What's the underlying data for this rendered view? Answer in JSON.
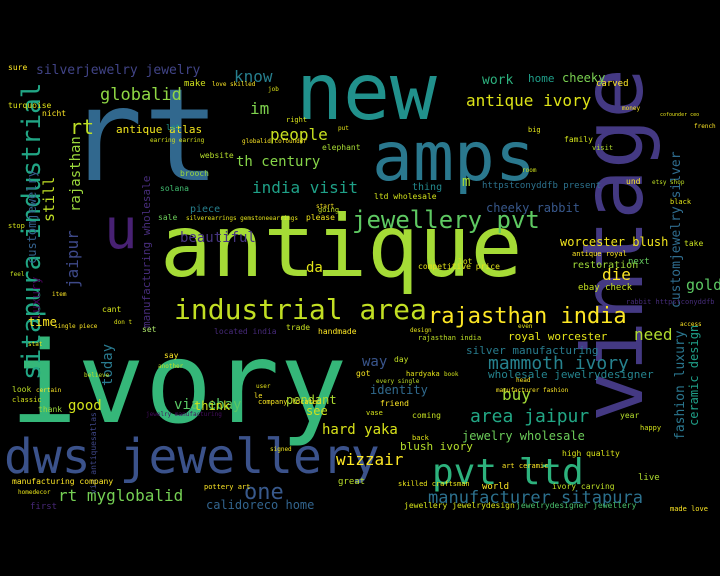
{
  "cloud": {
    "background": "#000000",
    "words": [
      {
        "text": "ivory",
        "color": "#35b779"
      },
      {
        "text": "rt",
        "color": "#31688e"
      },
      {
        "text": "antique",
        "color": "#a5db36"
      },
      {
        "text": "new",
        "color": "#21918c"
      },
      {
        "text": "vintage",
        "color": "#443983"
      },
      {
        "text": "amps",
        "color": "#2a788e"
      },
      {
        "text": "dws jewellery",
        "color": "#3b528b"
      },
      {
        "text": "u",
        "color": "#482173"
      },
      {
        "text": "pvt ltd",
        "color": "#2db27d"
      },
      {
        "text": "industrial area",
        "color": "#c2df23"
      },
      {
        "text": "jewellery pvt",
        "color": "#5ec962"
      },
      {
        "text": "sitapura industrial",
        "color": "#21a685"
      },
      {
        "text": "rajasthan india",
        "color": "#fde725"
      },
      {
        "text": "india visit",
        "color": "#1fa188"
      },
      {
        "text": "one",
        "color": "#38598c"
      },
      {
        "text": "rt myglobalid",
        "color": "#75d054"
      },
      {
        "text": "manufacturer sitapura",
        "color": "#2c718e"
      },
      {
        "text": "mammoth ivory",
        "color": "#26828e"
      },
      {
        "text": "antique ivory",
        "color": "#dde318"
      },
      {
        "text": "globalid",
        "color": "#8fd744"
      },
      {
        "text": "rt",
        "color": "#bddf26"
      },
      {
        "text": "area jaipur",
        "color": "#22a785"
      },
      {
        "text": "via ebay",
        "color": "#5ac864"
      },
      {
        "text": "hard yaka",
        "color": "#d8e219"
      },
      {
        "text": "wizzair",
        "color": "#fde725"
      },
      {
        "text": "blush ivory",
        "color": "#b5de2b"
      },
      {
        "text": "royal worcester",
        "color": "#e5e419"
      },
      {
        "text": "worcester blush",
        "color": "#f1e51d"
      },
      {
        "text": "jewelry wholesale",
        "color": "#6ccd5a"
      },
      {
        "text": "ceramic design",
        "color": "#1f9f88"
      },
      {
        "text": "fashion luxury",
        "color": "#2a768e"
      },
      {
        "text": "customjewelry silver",
        "color": "#2f6c8e"
      },
      {
        "text": "silverjewelry jewelry",
        "color": "#414487"
      },
      {
        "text": "rajasthan",
        "color": "#9bd93c"
      },
      {
        "text": "jaipur",
        "color": "#3e4989"
      },
      {
        "text": "customjewelry",
        "color": "#34618d"
      },
      {
        "text": "luxury",
        "color": "#440154"
      },
      {
        "text": "know",
        "color": "#277f8e"
      },
      {
        "text": "people",
        "color": "#c8e020"
      },
      {
        "text": "th century",
        "color": "#86d549"
      },
      {
        "text": "im",
        "color": "#7fd34e"
      },
      {
        "text": "still",
        "color": "#c0df25"
      },
      {
        "text": "beautiful",
        "color": "#463480"
      },
      {
        "text": "gold",
        "color": "#5cc863"
      },
      {
        "text": "need",
        "color": "#b0dd2f"
      },
      {
        "text": "buy",
        "color": "#a2da37"
      },
      {
        "text": "good",
        "color": "#d2e21b"
      },
      {
        "text": "today",
        "color": "#29798e"
      },
      {
        "text": "da",
        "color": "#e2e418"
      },
      {
        "text": "die",
        "color": "#fde725"
      },
      {
        "text": "way",
        "color": "#39558c"
      },
      {
        "text": "work",
        "color": "#2cb17e"
      },
      {
        "text": "home",
        "color": "#1f9e89"
      },
      {
        "text": "cheeky",
        "color": "#7ad151"
      },
      {
        "text": "cheeky rabbit",
        "color": "#38588c"
      },
      {
        "text": "time",
        "color": "#fbe723"
      },
      {
        "text": "m",
        "color": "#a5db36"
      },
      {
        "text": "think",
        "color": "#d0e11c"
      },
      {
        "text": "see",
        "color": "#cde11d"
      },
      {
        "text": "identity",
        "color": "#306a8e"
      },
      {
        "text": "silver manufacturing",
        "color": "#287c8e"
      },
      {
        "text": "wholesale jewelrydesigner",
        "color": "#25848e"
      },
      {
        "text": "pendant",
        "color": "#addc30"
      },
      {
        "text": "manufacturing wholesale",
        "color": "#472d7b"
      },
      {
        "text": "antique atlas",
        "color": "#f1e51d"
      },
      {
        "text": "calidoreco home",
        "color": "#32648e"
      },
      {
        "text": "jewellery jewelrydesign",
        "color": "#d5e21a"
      },
      {
        "text": "jewelrydesigner jewellery",
        "color": "#4ac16d"
      },
      {
        "text": "httpstconyddfb present",
        "color": "#2c728e"
      },
      {
        "text": "restoration",
        "color": "#a0da39"
      },
      {
        "text": "next",
        "color": "#65cb5e"
      },
      {
        "text": "ebay check",
        "color": "#c5e021"
      },
      {
        "text": "thing",
        "color": "#23898e"
      },
      {
        "text": "piece",
        "color": "#27808e"
      },
      {
        "text": "make",
        "color": "#d0e11c"
      },
      {
        "text": "love skilled",
        "color": "#fde725"
      },
      {
        "text": "elephant",
        "color": "#a8db34"
      },
      {
        "text": "website",
        "color": "#b5de2b"
      },
      {
        "text": "let",
        "color": "#1f968b"
      },
      {
        "text": "sale",
        "color": "#6ccd5a"
      },
      {
        "text": "solana",
        "color": "#42be71"
      },
      {
        "text": "brooch",
        "color": "#9dd93b"
      },
      {
        "text": "ltd wholesale",
        "color": "#d2e21b"
      },
      {
        "text": "competitive price",
        "color": "#e5e419"
      },
      {
        "text": "located india",
        "color": "#472a7a"
      },
      {
        "text": "handmade",
        "color": "#fde725"
      },
      {
        "text": "set",
        "color": "#ade86b"
      },
      {
        "text": "via antiquesatlas",
        "color": "#3f4788"
      },
      {
        "text": "jewelry manufacturing",
        "color": "#470e61"
      },
      {
        "text": "company located",
        "color": "#f8e621"
      },
      {
        "text": "pottery art",
        "color": "#fde725"
      },
      {
        "text": "great",
        "color": "#b8de29"
      },
      {
        "text": "skilled craftsman",
        "color": "#eae51a"
      },
      {
        "text": "world",
        "color": "#fde725"
      },
      {
        "text": "ivory carving",
        "color": "#bddf26"
      },
      {
        "text": "art ceramic",
        "color": "#fde725"
      },
      {
        "text": "high quality",
        "color": "#d8e219"
      },
      {
        "text": "made love",
        "color": "#fde725"
      },
      {
        "text": "live",
        "color": "#addc30"
      },
      {
        "text": "manufacturing company",
        "color": "#fde725"
      },
      {
        "text": "homedecor",
        "color": "#e7e419"
      },
      {
        "text": "first",
        "color": "#482878"
      },
      {
        "text": "classic",
        "color": "#d5e21a"
      },
      {
        "text": "look",
        "color": "#bddf26"
      },
      {
        "text": "thank",
        "color": "#9bd93c"
      },
      {
        "text": "certain",
        "color": "#fde725"
      },
      {
        "text": "believe",
        "color": "#c0df25"
      },
      {
        "text": "sure",
        "color": "#fde725"
      },
      {
        "text": "turquoise",
        "color": "#e2e418"
      },
      {
        "text": "earring earring",
        "color": "#d5e21a"
      },
      {
        "text": "silverearrings gemstoneearrings",
        "color": "#e5e419"
      },
      {
        "text": "please",
        "color": "#f1e51d"
      },
      {
        "text": "going",
        "color": "#c2df23"
      },
      {
        "text": "right",
        "color": "#d8e219"
      },
      {
        "text": "globalid cofounder",
        "color": "#fde725"
      },
      {
        "text": "carved",
        "color": "#fde725"
      },
      {
        "text": "family",
        "color": "#d0e11c"
      },
      {
        "text": "black",
        "color": "#e2e418"
      },
      {
        "text": "etsy shop",
        "color": "#bddf26"
      },
      {
        "text": "und",
        "color": "#fde725"
      },
      {
        "text": "take",
        "color": "#c8e020"
      },
      {
        "text": "year",
        "color": "#b5de2b"
      },
      {
        "text": "happy",
        "color": "#d2e21b"
      },
      {
        "text": "rabbit httpstconyddfb",
        "color": "#472d7b"
      },
      {
        "text": "antique royal",
        "color": "#fde725"
      },
      {
        "text": "lot",
        "color": "#d5e21a"
      },
      {
        "text": "even",
        "color": "#e7e419"
      },
      {
        "text": "nicht",
        "color": "#fde725"
      },
      {
        "text": "job",
        "color": "#dde318"
      },
      {
        "text": "put",
        "color": "#e5e419"
      },
      {
        "text": "room",
        "color": "#d0e11c"
      },
      {
        "text": "visit",
        "color": "#b0dd2f"
      },
      {
        "text": "start",
        "color": "#fde725"
      },
      {
        "text": "hardyaka",
        "color": "#e5e419"
      },
      {
        "text": "got",
        "color": "#f8e621"
      },
      {
        "text": "every single",
        "color": "#bddf26"
      },
      {
        "text": "friend",
        "color": "#fde725"
      },
      {
        "text": "vase",
        "color": "#d5e21a"
      },
      {
        "text": "coming",
        "color": "#c5e021"
      },
      {
        "text": "back",
        "color": "#e2e418"
      },
      {
        "text": "signed",
        "color": "#f1e51d"
      },
      {
        "text": "day",
        "color": "#c2df23"
      },
      {
        "text": "say",
        "color": "#fde725"
      },
      {
        "text": "another",
        "color": "#bddf26"
      },
      {
        "text": "user",
        "color": "#e7e419"
      },
      {
        "text": "le",
        "color": "#fde725"
      },
      {
        "text": "cant",
        "color": "#d2e21b"
      },
      {
        "text": "don t",
        "color": "#dde318"
      },
      {
        "text": "single piece",
        "color": "#fde725"
      },
      {
        "text": "trade",
        "color": "#c8e020"
      },
      {
        "text": "design",
        "color": "#e5e419"
      },
      {
        "text": "manufacturer fashion",
        "color": "#fde725"
      },
      {
        "text": "rajasthan india",
        "color": "#bddf26"
      },
      {
        "text": "book",
        "color": "#d0e11c"
      },
      {
        "text": "head",
        "color": "#fde725"
      },
      {
        "text": "big",
        "color": "#e2e418"
      },
      {
        "text": "money",
        "color": "#f8e621"
      },
      {
        "text": "french",
        "color": "#fde725"
      },
      {
        "text": "cofounder ceo",
        "color": "#e7e419"
      },
      {
        "text": "access",
        "color": "#fde725"
      },
      {
        "text": "stop",
        "color": "#d5e21a"
      },
      {
        "text": "feel",
        "color": "#c5e021"
      },
      {
        "text": "item",
        "color": "#fde725"
      },
      {
        "text": "stat",
        "color": "#e5e419"
      }
    ]
  }
}
